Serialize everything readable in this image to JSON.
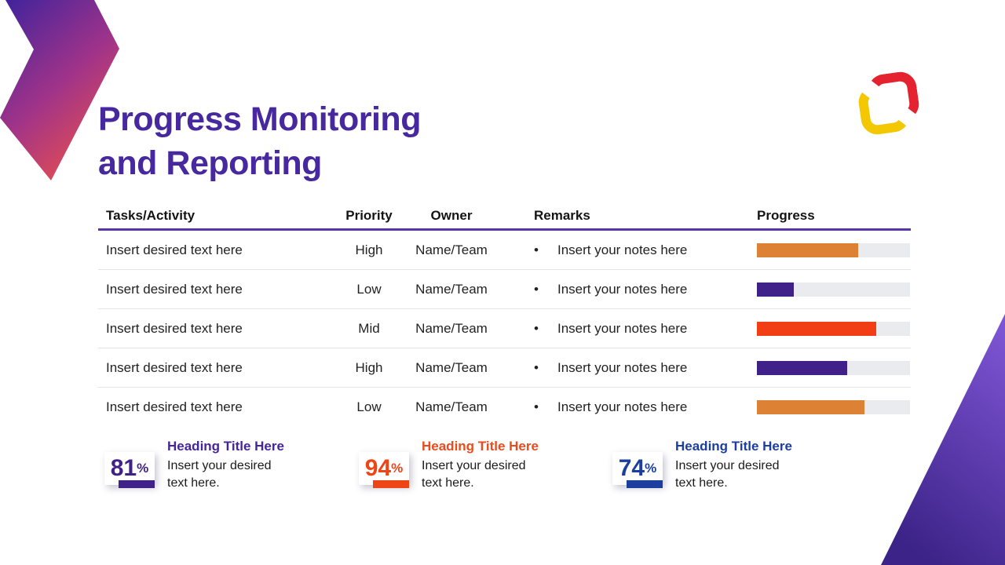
{
  "slide": {
    "title_lines": [
      "Progress Monitoring",
      "and Reporting"
    ]
  },
  "colors": {
    "title": "#47289E",
    "header_rule": "#5B34A8",
    "progress_track": "#E9EBEE",
    "chevron_top": "#45249B",
    "chevron_mid": "#A03389",
    "chevron_bottom": "#E8504E",
    "triangle_top": "#7D54D3",
    "triangle_bottom": "#3C2387",
    "logo_red": "#E52330",
    "logo_yellow": "#F3C801"
  },
  "table": {
    "bullet": "•",
    "headers": [
      "Tasks/Activity",
      "Priority",
      "Owner",
      "Remarks",
      "Progress"
    ],
    "rows": [
      {
        "task": "Insert desired text here",
        "priority": "High",
        "owner": "Name/Team",
        "remark": "Insert your notes here",
        "progress_pct": 66,
        "bar_color": "#DD8134"
      },
      {
        "task": "Insert desired text here",
        "priority": "Low",
        "owner": "Name/Team",
        "remark": "Insert your notes here",
        "progress_pct": 24,
        "bar_color": "#3F2189"
      },
      {
        "task": "Insert desired text here",
        "priority": "Mid",
        "owner": "Name/Team",
        "remark": "Insert your notes here",
        "progress_pct": 78,
        "bar_color": "#F23E14"
      },
      {
        "task": "Insert desired text here",
        "priority": "High",
        "owner": "Name/Team",
        "remark": "Insert your notes here",
        "progress_pct": 59,
        "bar_color": "#3F2189"
      },
      {
        "task": "Insert desired text here",
        "priority": "Low",
        "owner": "Name/Team",
        "remark": "Insert your notes here",
        "progress_pct": 70,
        "bar_color": "#DD8134"
      }
    ]
  },
  "stats": [
    {
      "value": "81",
      "unit": "%",
      "heading": "Heading Title Here",
      "body_line1": "Insert your desired",
      "body_line2": "text here.",
      "accent": "#3F2189",
      "heading_color": "#45259A"
    },
    {
      "value": "94",
      "unit": "%",
      "heading": "Heading Title Here",
      "body_line1": "Insert your desired",
      "body_line2": "text here.",
      "accent": "#EE4517",
      "heading_color": "#E84B1E"
    },
    {
      "value": "74",
      "unit": "%",
      "heading": "Heading Title Here",
      "body_line1": "Insert your desired",
      "body_line2": "text here.",
      "accent": "#1C3E9E",
      "heading_color": "#1C3E9E"
    }
  ]
}
